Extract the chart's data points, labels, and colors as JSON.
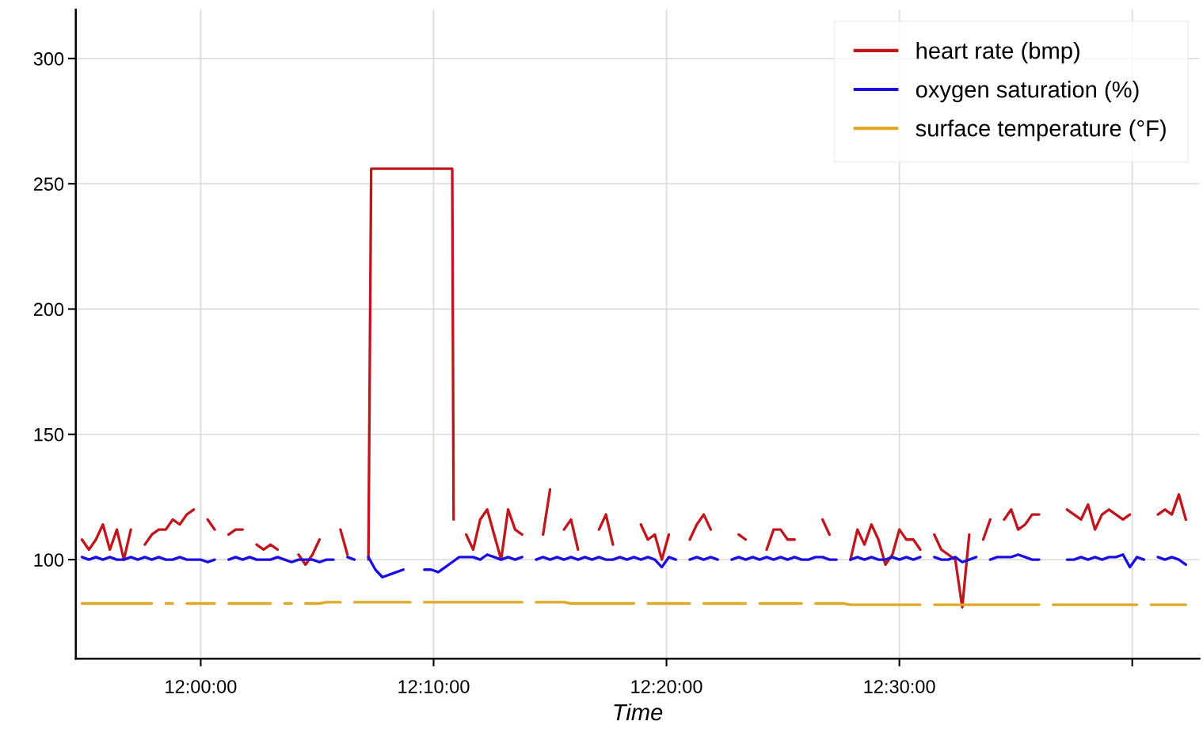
{
  "chart_data": {
    "type": "line",
    "xlabel": "Time",
    "xlim": [
      11.9106,
      12.7147
    ],
    "ylim": [
      60.5,
      319.5
    ],
    "xticks": [
      {
        "value": 12.0,
        "label": "12:00:00"
      },
      {
        "value": 12.16667,
        "label": "12:10:00"
      },
      {
        "value": 12.33333,
        "label": "12:20:00"
      },
      {
        "value": 12.5,
        "label": "12:30:00"
      },
      {
        "value": 12.66667,
        "label": null
      }
    ],
    "yticks": [
      100,
      150,
      200,
      250,
      300
    ],
    "grid": true,
    "legend": "top right",
    "marker": "none",
    "line_style": "solid",
    "x": [
      11.915,
      11.92,
      11.925,
      11.93,
      11.935,
      11.94,
      11.945,
      11.95,
      11.955,
      11.96,
      11.965,
      11.97,
      11.975,
      11.98,
      11.985,
      11.99,
      11.995,
      12.0,
      12.005,
      12.01,
      12.015,
      12.02,
      12.025,
      12.03,
      12.035,
      12.04,
      12.045,
      12.05,
      12.055,
      12.06,
      12.065,
      12.07,
      12.075,
      12.08,
      12.085,
      12.09,
      12.095,
      12.1,
      12.105,
      12.11,
      12.115,
      12.12,
      12.125,
      12.13,
      12.135,
      12.14,
      12.145,
      12.15,
      12.155,
      12.16,
      12.165,
      12.17,
      12.175,
      12.18,
      12.185,
      12.19,
      12.195,
      12.2,
      12.205,
      12.21,
      12.215,
      12.22,
      12.225,
      12.23,
      12.235,
      12.24,
      12.245,
      12.25,
      12.255,
      12.26,
      12.265,
      12.27,
      12.275,
      12.28,
      12.285,
      12.29,
      12.295,
      12.3,
      12.305,
      12.31,
      12.315,
      12.32,
      12.325,
      12.33,
      12.335,
      12.34,
      12.345,
      12.35,
      12.355,
      12.36,
      12.365,
      12.37,
      12.375,
      12.38,
      12.385,
      12.39,
      12.395,
      12.4,
      12.405,
      12.41,
      12.415,
      12.42,
      12.425,
      12.43,
      12.435,
      12.44,
      12.445,
      12.45,
      12.455,
      12.46,
      12.465,
      12.47,
      12.475,
      12.48,
      12.485,
      12.49,
      12.495,
      12.5,
      12.505,
      12.51,
      12.515,
      12.52,
      12.525,
      12.53,
      12.535,
      12.54,
      12.545,
      12.55,
      12.555,
      12.56,
      12.565,
      12.57,
      12.575,
      12.58,
      12.585,
      12.59,
      12.595,
      12.6,
      12.605,
      12.61,
      12.615,
      12.62,
      12.625,
      12.63,
      12.635,
      12.64,
      12.645,
      12.65,
      12.655,
      12.66,
      12.665,
      12.67,
      12.675,
      12.68,
      12.685,
      12.69,
      12.695,
      12.7,
      12.705
    ],
    "series": [
      {
        "name": "heart rate (bmp)",
        "color": "#c0171e",
        "x": [
          11.915,
          11.92,
          11.925,
          11.93,
          11.935,
          11.94,
          11.945,
          11.95,
          11.955,
          11.96,
          11.965,
          11.97,
          11.975,
          11.98,
          11.985,
          11.99,
          11.995,
          12.0,
          12.005,
          12.01,
          12.015,
          12.02,
          12.025,
          12.03,
          12.035,
          12.04,
          12.045,
          12.05,
          12.055,
          12.06,
          12.065,
          12.07,
          12.075,
          12.08,
          12.085,
          12.09,
          12.095,
          12.1,
          12.105,
          12.11,
          12.115,
          12.12,
          12.122,
          12.125,
          12.13,
          12.135,
          12.14,
          12.145,
          12.15,
          12.155,
          12.16,
          12.165,
          12.17,
          12.175,
          12.18,
          12.181,
          12.185,
          12.19,
          12.195,
          12.2,
          12.205,
          12.21,
          12.215,
          12.22,
          12.225,
          12.23,
          12.235,
          12.24,
          12.245,
          12.25,
          12.255,
          12.26,
          12.265,
          12.27,
          12.275,
          12.28,
          12.285,
          12.29,
          12.295,
          12.3,
          12.305,
          12.31,
          12.315,
          12.32,
          12.325,
          12.33,
          12.335,
          12.34,
          12.345,
          12.35,
          12.355,
          12.36,
          12.365,
          12.37,
          12.375,
          12.38,
          12.385,
          12.39,
          12.395,
          12.4,
          12.405,
          12.41,
          12.415,
          12.42,
          12.425,
          12.43,
          12.435,
          12.44,
          12.445,
          12.45,
          12.455,
          12.46,
          12.465,
          12.47,
          12.475,
          12.48,
          12.485,
          12.49,
          12.495,
          12.5,
          12.505,
          12.51,
          12.515,
          12.52,
          12.525,
          12.53,
          12.535,
          12.54,
          12.545,
          12.55,
          12.555,
          12.56,
          12.565,
          12.57,
          12.575,
          12.58,
          12.585,
          12.59,
          12.595,
          12.6,
          12.605,
          12.61,
          12.615,
          12.62,
          12.625,
          12.63,
          12.635,
          12.64,
          12.645,
          12.65,
          12.655,
          12.66,
          12.665,
          12.67,
          12.675,
          12.68,
          12.685,
          12.69,
          12.695,
          12.7,
          12.705
        ],
        "values": [
          108,
          104,
          108,
          114,
          104,
          112,
          100,
          112,
          null,
          106,
          110,
          112,
          112,
          116,
          114,
          118,
          120,
          null,
          116,
          112,
          null,
          110,
          112,
          112,
          null,
          106,
          104,
          106,
          104,
          null,
          null,
          102,
          98,
          102,
          108,
          null,
          null,
          112,
          102,
          null,
          null,
          100,
          256,
          256,
          256,
          256,
          256,
          256,
          256,
          256,
          256,
          256,
          256,
          256,
          256,
          116,
          null,
          110,
          104,
          116,
          120,
          110,
          100,
          120,
          112,
          110,
          null,
          null,
          110,
          128,
          null,
          112,
          116,
          104,
          null,
          null,
          112,
          118,
          106,
          null,
          null,
          null,
          114,
          108,
          110,
          100,
          110,
          null,
          null,
          108,
          114,
          118,
          112,
          null,
          null,
          null,
          110,
          108,
          null,
          null,
          104,
          112,
          112,
          108,
          108,
          null,
          null,
          null,
          116,
          110,
          null,
          null,
          100,
          112,
          106,
          114,
          108,
          98,
          102,
          112,
          108,
          108,
          104,
          null,
          110,
          104,
          102,
          100,
          81,
          110,
          null,
          108,
          116,
          null,
          116,
          120,
          112,
          114,
          118,
          118,
          null,
          null,
          null,
          120,
          118,
          116,
          122,
          112,
          118,
          120,
          118,
          116,
          118,
          null,
          null,
          null,
          118,
          120,
          118,
          126,
          116
        ]
      },
      {
        "name": "oxygen saturation (%)",
        "color": "#1a0ee0",
        "values": [
          101,
          100,
          101,
          100,
          101,
          100,
          100,
          101,
          100,
          101,
          100,
          101,
          100,
          100,
          101,
          100,
          100,
          100,
          99,
          100,
          null,
          100,
          101,
          100,
          101,
          100,
          100,
          100,
          101,
          100,
          99,
          100,
          100,
          100,
          99,
          100,
          100,
          null,
          101,
          100,
          null,
          101,
          96,
          93,
          94,
          95,
          96,
          null,
          null,
          96,
          96,
          95,
          97,
          99,
          101,
          101,
          101,
          100,
          102,
          101,
          100,
          101,
          100,
          101,
          null,
          100,
          101,
          100,
          101,
          100,
          101,
          100,
          101,
          100,
          101,
          100,
          100,
          101,
          100,
          101,
          100,
          101,
          100,
          97,
          101,
          100,
          null,
          100,
          101,
          100,
          101,
          100,
          null,
          100,
          101,
          100,
          101,
          100,
          101,
          100,
          101,
          100,
          101,
          100,
          100,
          101,
          101,
          100,
          100,
          null,
          100,
          101,
          100,
          101,
          100,
          100,
          101,
          100,
          101,
          100,
          101,
          null,
          101,
          100,
          100,
          101,
          99,
          100,
          101,
          null,
          100,
          101,
          101,
          101,
          102,
          101,
          100,
          100,
          null,
          null,
          null,
          100,
          100,
          101,
          100,
          101,
          100,
          101,
          101,
          102,
          97,
          101,
          100,
          null,
          101,
          100,
          101,
          100,
          98
        ]
      },
      {
        "name": "surface temperature (°F)",
        "color": "#e0a823",
        "values": [
          82.5,
          82.5,
          82.5,
          82.5,
          82.5,
          82.5,
          82.5,
          82.5,
          82.5,
          82.5,
          82.5,
          null,
          82.5,
          82.5,
          null,
          82.5,
          82.5,
          82.5,
          82.5,
          82.5,
          null,
          82.5,
          82.5,
          82.5,
          82.5,
          82.5,
          82.5,
          82.5,
          null,
          82.5,
          82.5,
          null,
          82.5,
          82.5,
          82.5,
          83,
          83,
          83,
          null,
          83,
          83,
          83,
          83,
          83,
          83,
          83,
          83,
          83,
          null,
          83,
          83,
          83,
          83,
          83,
          83,
          83,
          83,
          83,
          83,
          83,
          83,
          83,
          83,
          83,
          null,
          83,
          83,
          83,
          83,
          83,
          82.5,
          82.5,
          82.5,
          82.5,
          82.5,
          82.5,
          82.5,
          82.5,
          82.5,
          82.5,
          null,
          82.5,
          82.5,
          82.5,
          82.5,
          82.5,
          82.5,
          82.5,
          null,
          82.5,
          82.5,
          82.5,
          82.5,
          82.5,
          82.5,
          82.5,
          null,
          82.5,
          82.5,
          82.5,
          82.5,
          82.5,
          82.5,
          82.5,
          null,
          82.5,
          82.5,
          82.5,
          82.5,
          82.5,
          82,
          82,
          82,
          82,
          82,
          82,
          82,
          82,
          82,
          82,
          82,
          null,
          82,
          82,
          82,
          82,
          82,
          82,
          82,
          82,
          82,
          82,
          82,
          82,
          82,
          82,
          82,
          82,
          null,
          82,
          82,
          82,
          82,
          82,
          82,
          82,
          82,
          82,
          82,
          82,
          82,
          82,
          null,
          82,
          82,
          82,
          82,
          82,
          82
        ]
      }
    ]
  }
}
